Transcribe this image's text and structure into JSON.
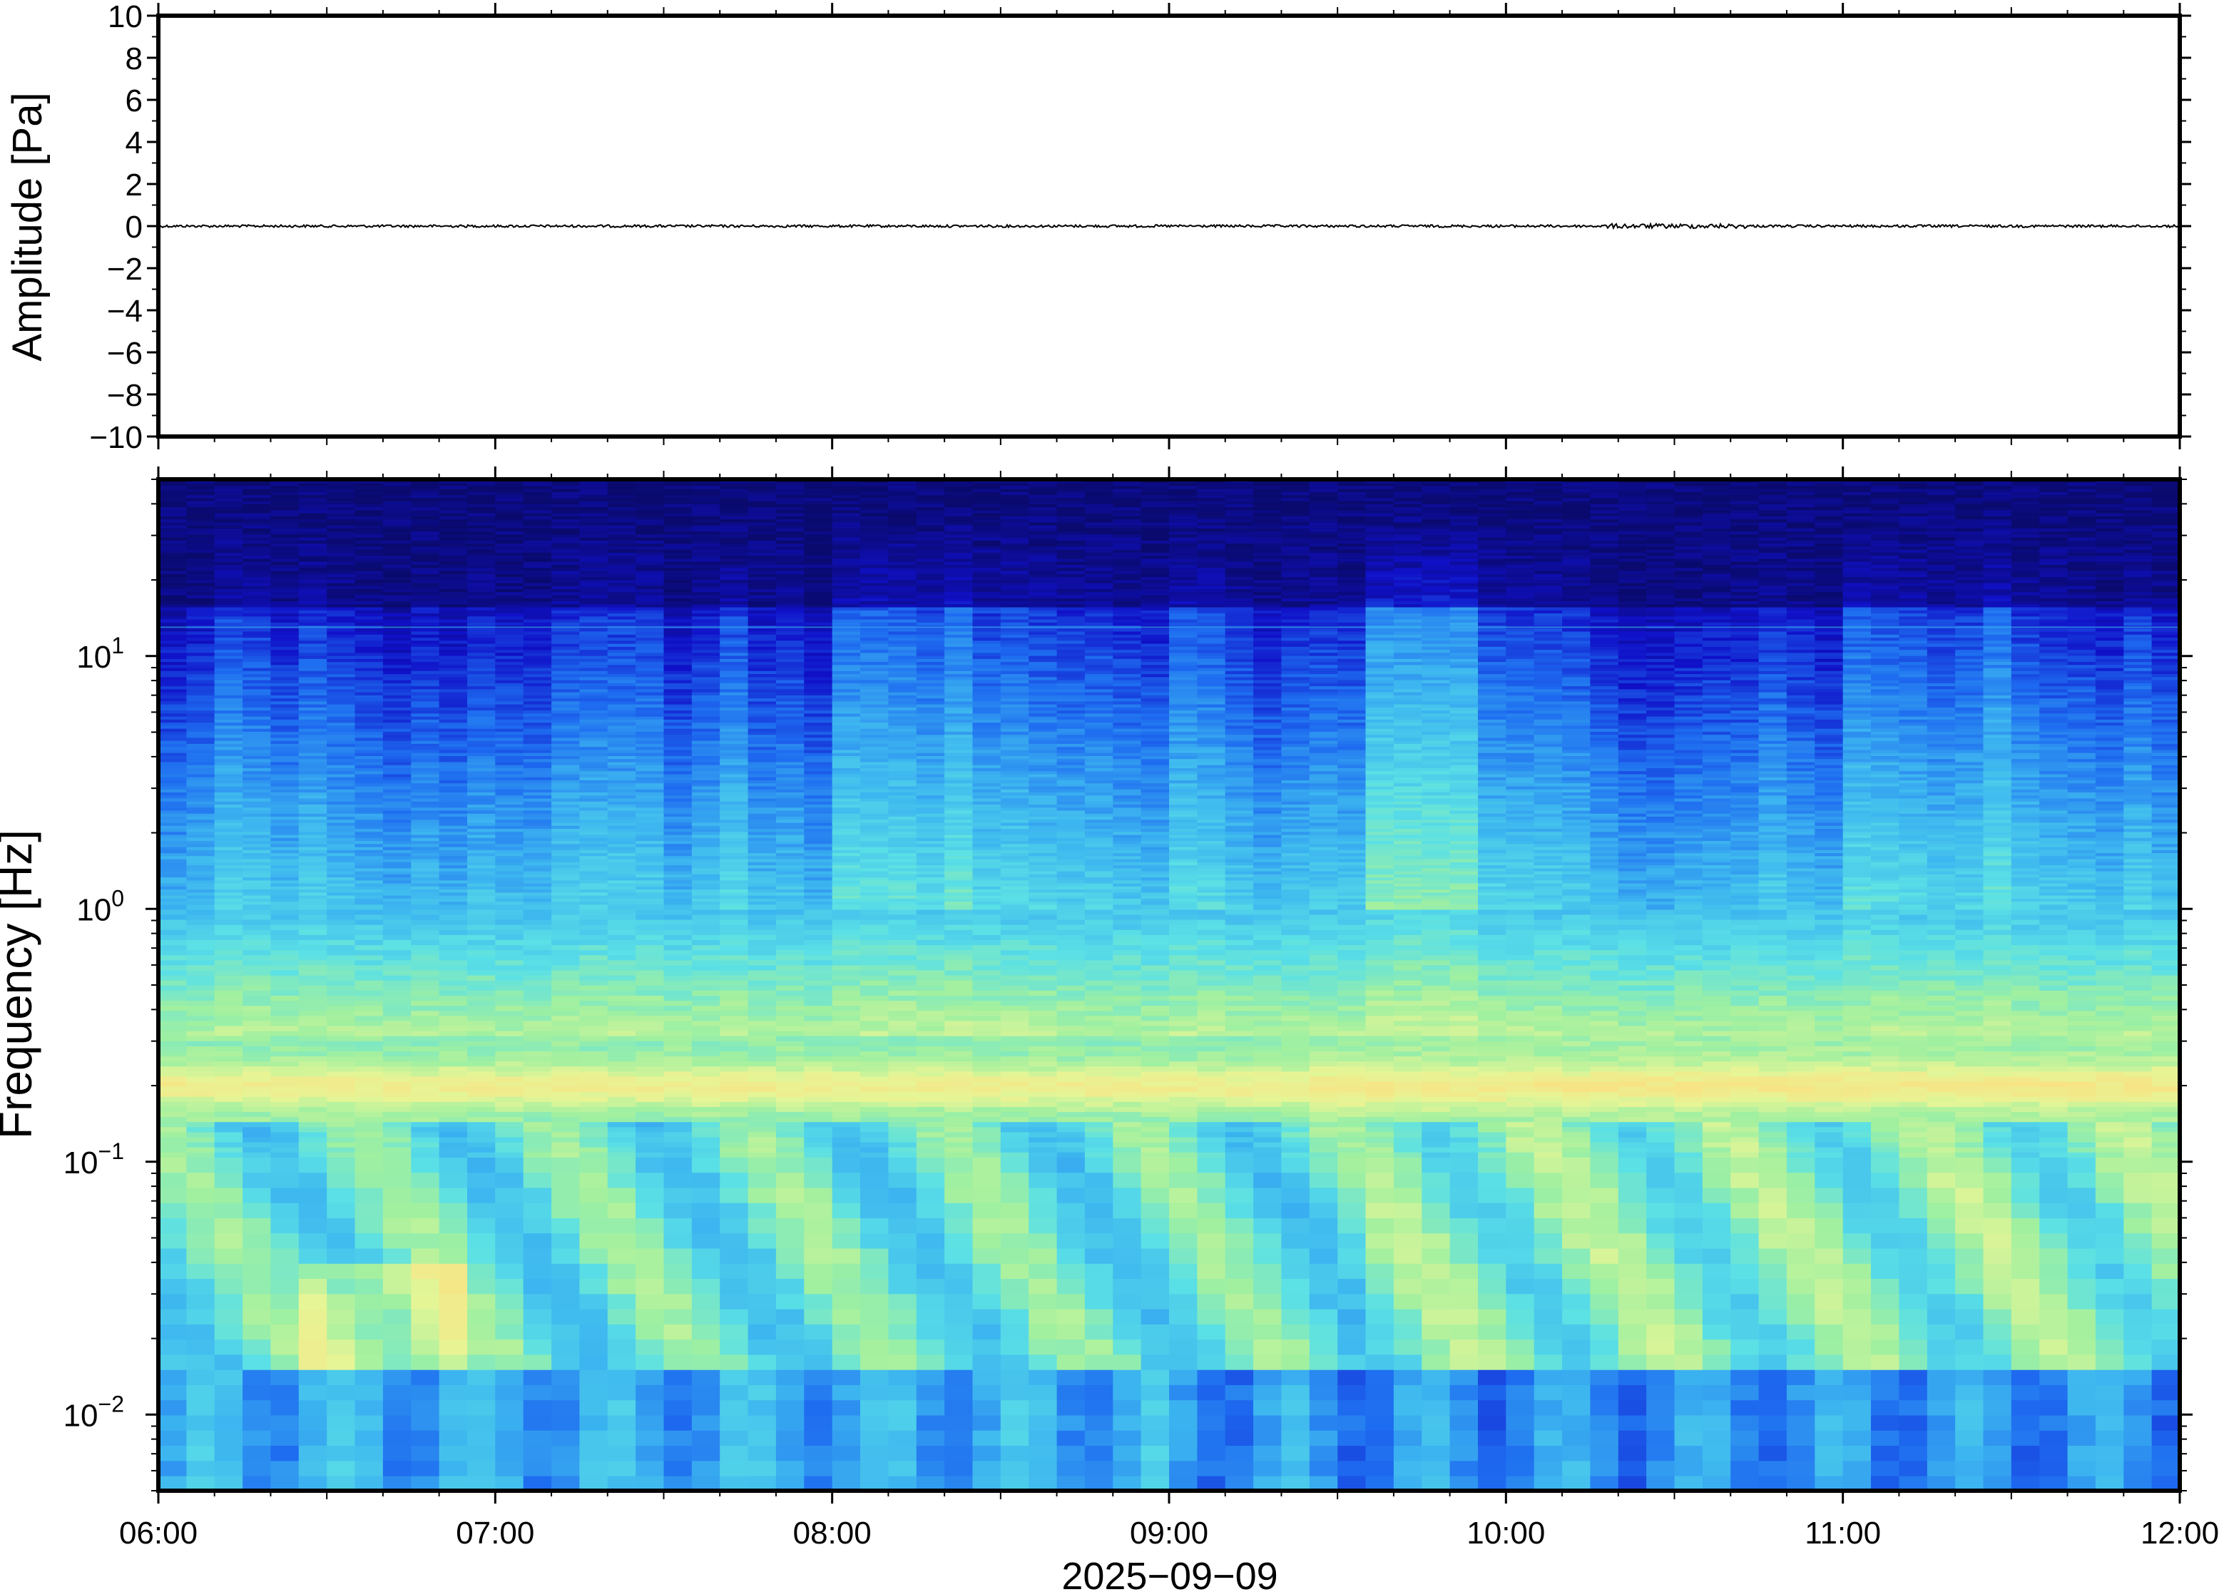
{
  "chart_data": [
    {
      "type": "line",
      "title": "",
      "ylabel": "Amplitude [Pa]",
      "ylim": [
        -10,
        10
      ],
      "yticks": [
        10,
        8,
        6,
        4,
        2,
        0,
        -2,
        -4,
        -6,
        -8,
        -10
      ],
      "ytick_labels": [
        "10",
        "8",
        "6",
        "4",
        "2",
        "0",
        "−2",
        "−4",
        "−6",
        "−8",
        "−10"
      ],
      "x_range_hours": [
        6,
        12
      ],
      "series": [
        {
          "baseline": 0,
          "noise_amplitude": 0.06,
          "color": "#000000"
        }
      ],
      "grid": false
    },
    {
      "type": "heatmap",
      "ylabel": "Frequency [Hz]",
      "xlabel": "2025−09−09",
      "yscale": "log",
      "ylim": [
        0.005,
        50
      ],
      "yticks": [
        {
          "value": 10,
          "base": "10",
          "exp": "1"
        },
        {
          "value": 1,
          "base": "10",
          "exp": "0"
        },
        {
          "value": 0.1,
          "base": "10",
          "exp": "−1"
        },
        {
          "value": 0.01,
          "base": "10",
          "exp": "−2"
        }
      ],
      "xticks": [
        "06:00",
        "07:00",
        "08:00",
        "09:00",
        "10:00",
        "11:00",
        "12:00"
      ],
      "colormap": [
        "#0a0a6e",
        "#1010c8",
        "#1e6cf0",
        "#3cb4f0",
        "#5ae0e6",
        "#a0f0a0",
        "#e6f596",
        "#fae182",
        "#fab464"
      ],
      "description_bands": {
        "high_freq_floor": 0,
        "microbarom_peak_hz": 0.2,
        "line_hz": 13
      }
    }
  ]
}
